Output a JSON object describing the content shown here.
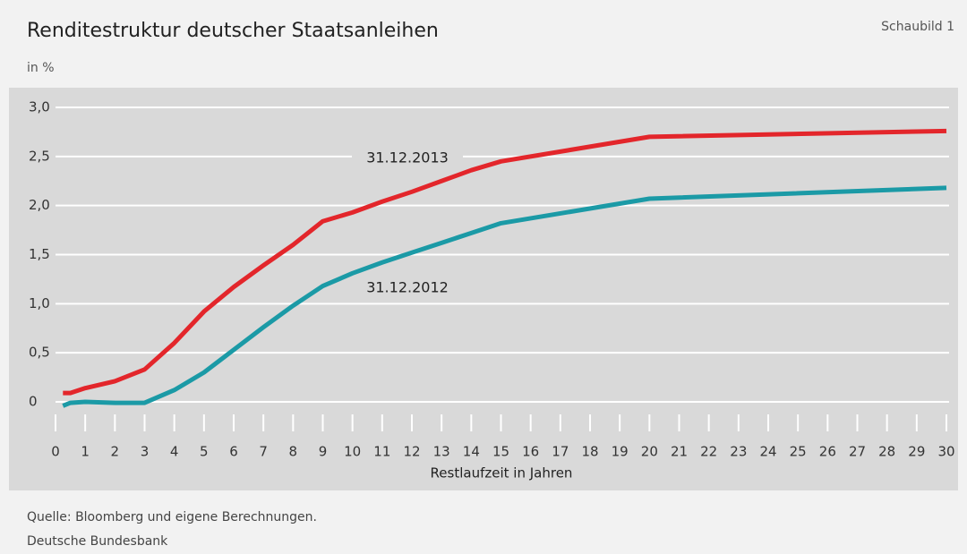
{
  "chart_data": {
    "type": "line",
    "title": "Renditestruktur deutscher Staatsanleihen",
    "corner_label": "Schaubild 1",
    "y_unit": "in %",
    "x_label": "Restlaufzeit in Jahren",
    "source": "Quelle: Bloomberg und eigene Berechnungen.",
    "publisher": "Deutsche Bundesbank",
    "x": [
      0.25,
      0.5,
      1,
      2,
      3,
      4,
      5,
      6,
      7,
      8,
      9,
      10,
      11,
      12,
      13,
      14,
      15,
      20,
      30
    ],
    "series": [
      {
        "name": "31.12.2013",
        "color": "#e3262b",
        "values": [
          0.09,
          0.09,
          0.14,
          0.21,
          0.33,
          0.6,
          0.92,
          1.17,
          1.39,
          1.6,
          1.84,
          1.93,
          2.04,
          2.14,
          2.25,
          2.36,
          2.45,
          2.7,
          2.76
        ]
      },
      {
        "name": "31.12.2012",
        "color": "#1b9aa6",
        "values": [
          -0.04,
          -0.01,
          0.0,
          -0.01,
          -0.01,
          0.12,
          0.3,
          0.53,
          0.76,
          0.98,
          1.18,
          1.31,
          1.42,
          1.52,
          1.62,
          1.72,
          1.82,
          2.07,
          2.18
        ]
      }
    ],
    "xlim": [
      0,
      30
    ],
    "xticks": [
      0,
      1,
      2,
      3,
      4,
      5,
      6,
      7,
      8,
      9,
      10,
      11,
      12,
      13,
      14,
      15,
      16,
      17,
      18,
      19,
      20,
      21,
      22,
      23,
      24,
      25,
      26,
      27,
      28,
      29,
      30
    ],
    "ylim": [
      0,
      3
    ],
    "yticks": [
      0,
      {
        "value": 0.5,
        "label": "0,5"
      },
      {
        "value": 1,
        "label": "1,0"
      },
      {
        "value": 1.5,
        "label": "1,5"
      },
      {
        "value": 2,
        "label": "2,0"
      },
      {
        "value": 2.5,
        "label": "2,5"
      },
      {
        "value": 3,
        "label": "3,0"
      }
    ],
    "grid": true
  }
}
